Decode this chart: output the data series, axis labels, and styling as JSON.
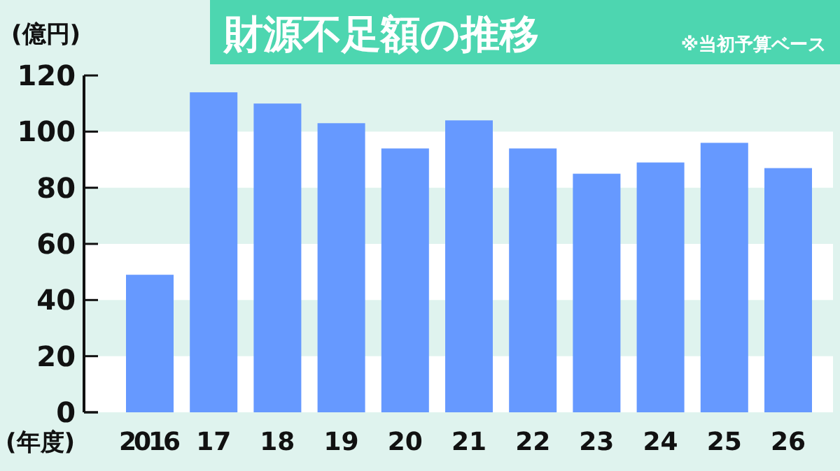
{
  "chart_data": {
    "type": "bar",
    "title": "財源不足額の推移",
    "annotations": [
      "※当初予算ベース"
    ],
    "ylabel": "(億円)",
    "xlabel": "(年度)",
    "categories": [
      "2016",
      "17",
      "18",
      "19",
      "20",
      "21",
      "22",
      "23",
      "24",
      "25",
      "26"
    ],
    "values": [
      49,
      114,
      110,
      103,
      94,
      104,
      94,
      85,
      89,
      96,
      87
    ],
    "color": "#6699ff",
    "ylim": [
      0,
      120
    ],
    "yticks": [
      0,
      20,
      40,
      60,
      80,
      100,
      120
    ],
    "bands": [
      {
        "axis": "y",
        "from": 100,
        "to": 120,
        "color": "#dff3ee"
      },
      {
        "axis": "y",
        "from": 60,
        "to": 80,
        "color": "#dff3ee"
      },
      {
        "axis": "y",
        "from": 20,
        "to": 40,
        "color": "#dff3ee"
      }
    ]
  }
}
